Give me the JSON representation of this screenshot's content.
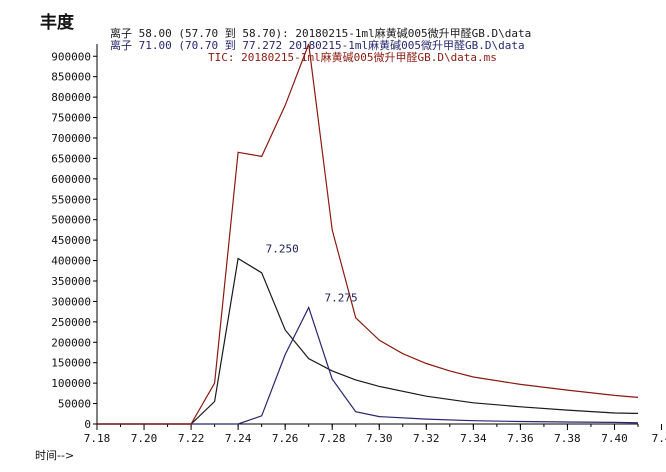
{
  "chart_data": {
    "type": "line",
    "ylabel": "丰度",
    "xlabel": "时间-->",
    "xlim": [
      7.18,
      7.41
    ],
    "ylim": [
      0,
      930000
    ],
    "grid": false,
    "x_ticks": [
      "7.18",
      "7.20",
      "7.22",
      "7.24",
      "7.26",
      "7.28",
      "7.30",
      "7.32",
      "7.34",
      "7.36",
      "7.38",
      "7.40",
      "7.4"
    ],
    "y_ticks": [
      "0",
      "50000",
      "100000",
      "150000",
      "200000",
      "250000",
      "300000",
      "350000",
      "400000",
      "450000",
      "500000",
      "550000",
      "600000",
      "650000",
      "700000",
      "750000",
      "800000",
      "850000",
      "900000"
    ],
    "series": [
      {
        "name": "离子 58.00 (57.70 到 58.70): 20180215-1ml麻黄碱005微升甲醛GB.D\\data",
        "color": "#1a1a1a",
        "x": [
          7.18,
          7.19,
          7.2,
          7.21,
          7.22,
          7.23,
          7.24,
          7.25,
          7.26,
          7.27,
          7.28,
          7.29,
          7.3,
          7.32,
          7.34,
          7.36,
          7.38,
          7.4,
          7.41
        ],
        "y": [
          0,
          0,
          0,
          0,
          0,
          55000,
          405000,
          370000,
          230000,
          160000,
          130000,
          108000,
          92000,
          68000,
          52000,
          42000,
          34000,
          27000,
          26000
        ]
      },
      {
        "name": "离子 71.00 (70.70 到 77.272 20180215-1ml麻黄碱005微升甲醛GB.D\\data",
        "color": "#27276e",
        "x": [
          7.18,
          7.2,
          7.22,
          7.23,
          7.24,
          7.25,
          7.26,
          7.27,
          7.28,
          7.29,
          7.3,
          7.32,
          7.34,
          7.36,
          7.38,
          7.4,
          7.41
        ],
        "y": [
          0,
          0,
          0,
          0,
          0,
          20000,
          170000,
          285000,
          110000,
          30000,
          18000,
          12000,
          8000,
          6000,
          5000,
          4000,
          3000
        ]
      },
      {
        "name": "TIC: 20180215-1ml麻黄碱005微升甲醛GB.D\\data.ms",
        "color": "#8b1a10",
        "x": [
          7.18,
          7.19,
          7.2,
          7.21,
          7.22,
          7.23,
          7.24,
          7.25,
          7.26,
          7.27,
          7.28,
          7.29,
          7.3,
          7.31,
          7.32,
          7.33,
          7.34,
          7.36,
          7.38,
          7.4,
          7.41
        ],
        "y": [
          0,
          0,
          0,
          0,
          0,
          100000,
          665000,
          655000,
          780000,
          930000,
          475000,
          260000,
          205000,
          172000,
          148000,
          130000,
          115000,
          97000,
          83000,
          70000,
          65000
        ]
      }
    ],
    "annotations": [
      {
        "text": "7.250",
        "x": 7.25,
        "y": 405000
      },
      {
        "text": "7.275",
        "x": 7.275,
        "y": 285000
      }
    ]
  }
}
